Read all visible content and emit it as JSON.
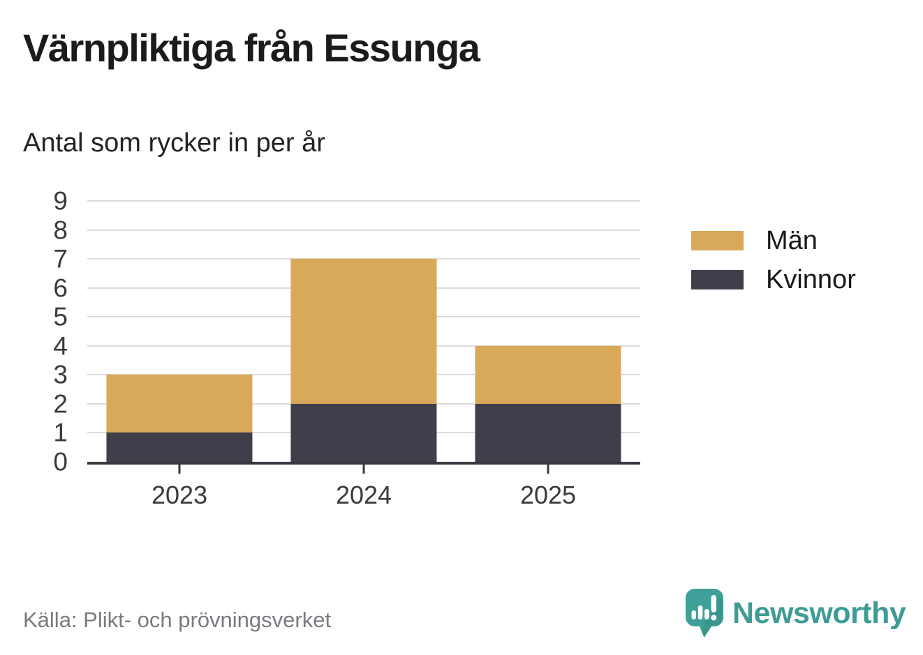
{
  "title": "Värnpliktiga från Essunga",
  "subtitle": "Antal som rycker in per år",
  "source": "Källa: Plikt- och prövningsverket",
  "brand": {
    "name": "Newsworthy",
    "logo_icon": "newsworthy-speech-bubble-chart-icon",
    "accent_color": "#3E9C95"
  },
  "colors": {
    "men": "#D8A958",
    "women": "#413E4C",
    "grid": "#dcdcdc",
    "axis": "#38363F",
    "title_text": "#1b1b1b",
    "source_text": "#7a7980"
  },
  "chart_data": {
    "type": "bar",
    "stacked": true,
    "title": "Värnpliktiga från Essunga",
    "subtitle": "Antal som rycker in per år",
    "categories": [
      "2023",
      "2024",
      "2025"
    ],
    "series": [
      {
        "name": "Kvinnor",
        "color": "#413E4C",
        "values": [
          1,
          2,
          2
        ]
      },
      {
        "name": "Män",
        "color": "#D8A958",
        "values": [
          2,
          5,
          2
        ]
      }
    ],
    "totals": [
      3,
      7,
      4
    ],
    "xlabel": "",
    "ylabel": "",
    "ylim": [
      0,
      9
    ],
    "yticks": [
      0,
      1,
      2,
      3,
      4,
      5,
      6,
      7,
      8,
      9
    ],
    "grid": true,
    "legend_position": "right",
    "legend_order": [
      "Män",
      "Kvinnor"
    ]
  }
}
